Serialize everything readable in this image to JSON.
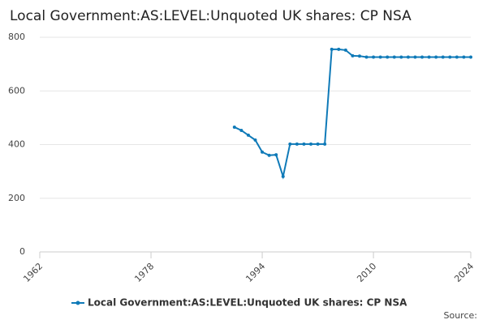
{
  "chart_data": {
    "type": "line",
    "title": "Local Government:AS:LEVEL:Unquoted UK shares: CP NSA",
    "x": [
      1990,
      1991,
      1992,
      1993,
      1994,
      1995,
      1996,
      1997,
      1998,
      1999,
      2000,
      2001,
      2002,
      2003,
      2004,
      2005,
      2006,
      2007,
      2008,
      2009,
      2010,
      2011,
      2012,
      2013,
      2014,
      2015,
      2016,
      2017,
      2018,
      2019,
      2020,
      2021,
      2022,
      2023,
      2024
    ],
    "series": [
      {
        "name": "Local Government:AS:LEVEL:Unquoted UK shares: CP NSA",
        "color": "#0f7ab8",
        "values": [
          465,
          453,
          435,
          417,
          372,
          360,
          362,
          281,
          402,
          402,
          402,
          402,
          402,
          402,
          755,
          755,
          752,
          731,
          730,
          726,
          726,
          726,
          726,
          726,
          726,
          726,
          726,
          726,
          726,
          726,
          726,
          726,
          726,
          726,
          726
        ]
      }
    ],
    "xlim": [
      1962,
      2024
    ],
    "xticks": [
      1962,
      1978,
      1994,
      2010,
      2024
    ],
    "ylim": [
      0,
      800
    ],
    "yticks": [
      0,
      200,
      400,
      600,
      800
    ],
    "grid": true,
    "legend": "bottom",
    "source": "Source:"
  }
}
